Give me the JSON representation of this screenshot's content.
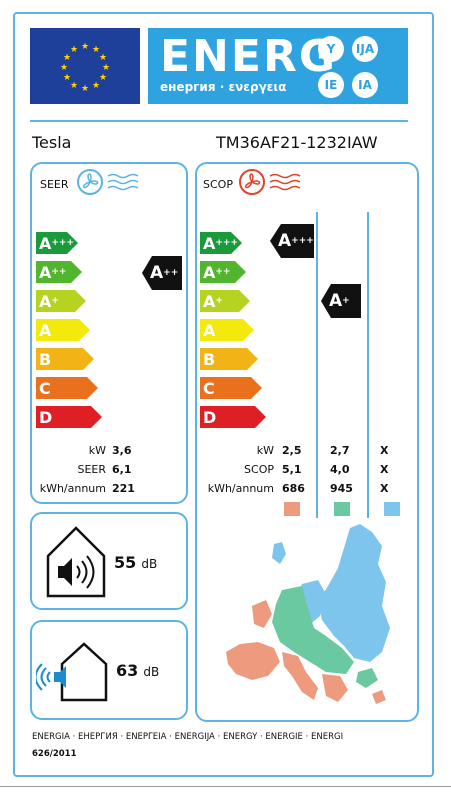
{
  "header": {
    "energ_word": "ENERG",
    "subtitle": "енергия · ενεργεια",
    "circles": [
      "Y",
      "IJA",
      "IE",
      "IA"
    ]
  },
  "brand": "Tesla",
  "model": "TM36AF21-1232IAW",
  "seer": {
    "title": "SEER",
    "class": "A",
    "class_sup": "++",
    "rows": [
      {
        "label": "kW",
        "value": "3,6"
      },
      {
        "label": "SEER",
        "value": "6,1"
      },
      {
        "label": "kWh/annum",
        "value": "221"
      }
    ]
  },
  "scop": {
    "title": "SCOP",
    "class_1": "A",
    "class_1_sup": "+++",
    "class_2": "A",
    "class_2_sup": "+",
    "rows": [
      {
        "label": "kW",
        "v1": "2,5",
        "v2": "2,7",
        "v3": "X"
      },
      {
        "label": "SCOP",
        "v1": "5,1",
        "v2": "4,0",
        "v3": "X"
      },
      {
        "label": "kWh/annum",
        "v1": "686",
        "v2": "945",
        "v3": "X"
      }
    ],
    "zone_colors": [
      "#ee9a7e",
      "#6bc9a1",
      "#7ec5ee"
    ]
  },
  "scale": [
    {
      "letter": "A",
      "sup": "+++",
      "color": "#1a9a3a",
      "width": 42
    },
    {
      "letter": "A",
      "sup": "++",
      "color": "#51b52e",
      "width": 46
    },
    {
      "letter": "A",
      "sup": "+",
      "color": "#b7d321",
      "width": 50
    },
    {
      "letter": "A",
      "sup": "",
      "color": "#f3e90d",
      "width": 54
    },
    {
      "letter": "B",
      "sup": "",
      "color": "#f2b316",
      "width": 58
    },
    {
      "letter": "C",
      "sup": "",
      "color": "#e9711d",
      "width": 62
    },
    {
      "letter": "D",
      "sup": "",
      "color": "#df1f26",
      "width": 66
    }
  ],
  "noise_indoor": {
    "value": "55",
    "unit": "dB"
  },
  "noise_outdoor": {
    "value": "63",
    "unit": "dB"
  },
  "footer": {
    "languages": "ENERGIA · ЕНЕРГИЯ · ΕΝΕΡΓΕΙΑ · ENERGIJA · ENERGY · ENERGIE · ENERGI",
    "regulation": "626/2011"
  }
}
